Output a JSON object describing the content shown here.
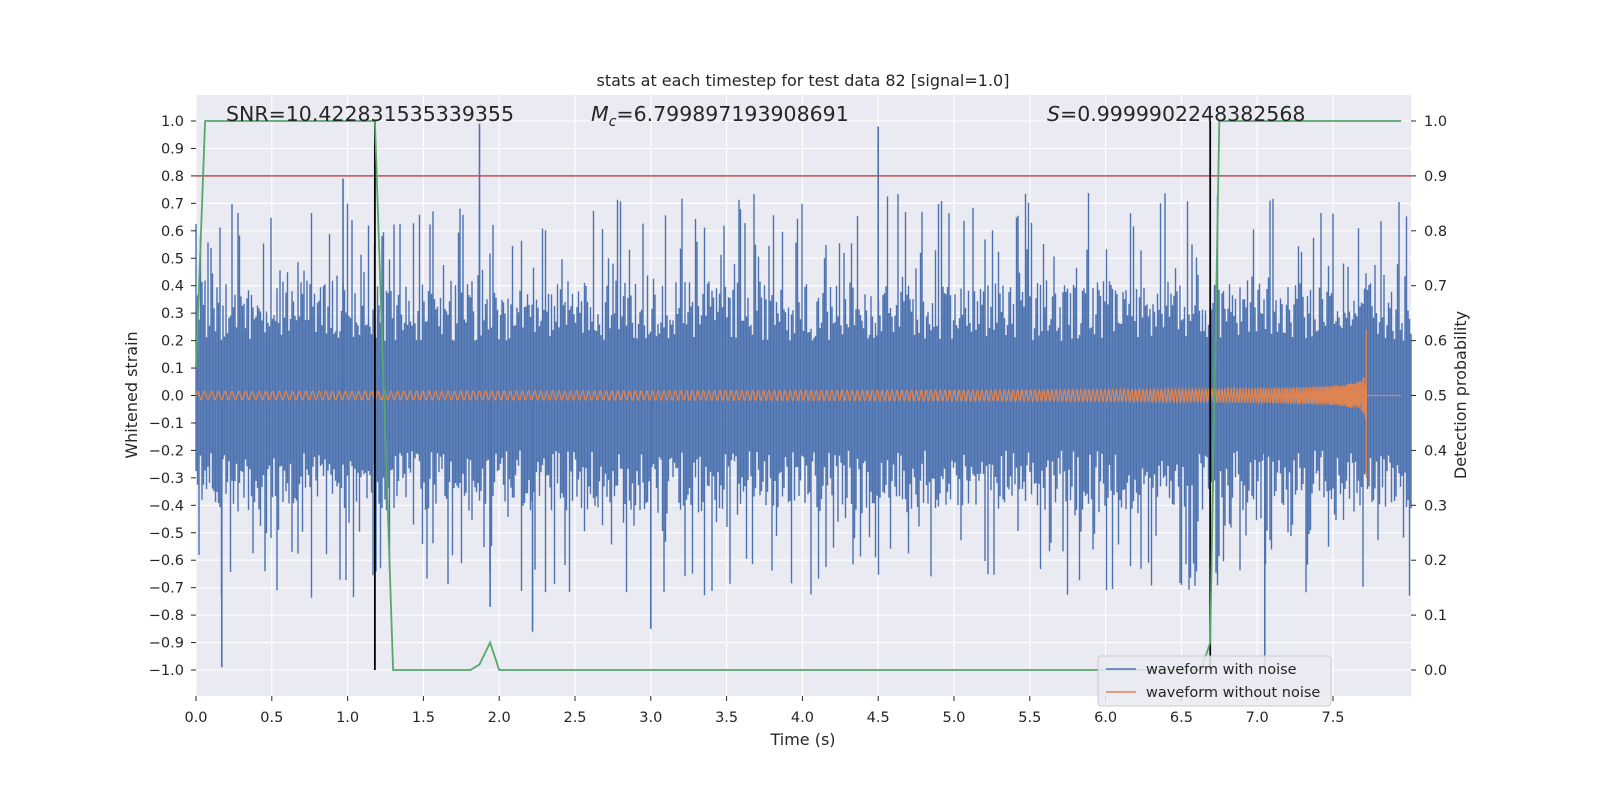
{
  "chart_data": {
    "type": "line",
    "title": "stats at each timestep for test data 82 [signal=1.0]",
    "xlabel": "Time (s)",
    "ylabel": "Whitened strain",
    "y2label": "Detection probability",
    "xlim": [
      0.0,
      8.0
    ],
    "ylim": [
      -1.1,
      1.1
    ],
    "y2lim": [
      -0.05,
      1.05
    ],
    "x_ticks": [
      "0.0",
      "0.5",
      "1.0",
      "1.5",
      "2.0",
      "2.5",
      "3.0",
      "3.5",
      "4.0",
      "4.5",
      "5.0",
      "5.5",
      "6.0",
      "6.5",
      "7.0",
      "7.5"
    ],
    "y_ticks": [
      "−1.0",
      "−0.9",
      "−0.8",
      "−0.7",
      "−0.6",
      "−0.5",
      "−0.4",
      "−0.3",
      "−0.2",
      "−0.1",
      "0.0",
      "0.1",
      "0.2",
      "0.3",
      "0.4",
      "0.5",
      "0.6",
      "0.7",
      "0.8",
      "0.9",
      "1.0"
    ],
    "y2_ticks": [
      "0.0",
      "0.1",
      "0.2",
      "0.3",
      "0.4",
      "0.5",
      "0.6",
      "0.7",
      "0.8",
      "0.9",
      "1.0"
    ],
    "grid": true,
    "legend_position": "lower-right",
    "annotations": {
      "snr": "SNR=10.422831535339355",
      "mc_symbol": "M",
      "mc_sub": "c",
      "mc_value": "=6.799897193908691",
      "s_symbol": "S",
      "s_value": "=0.9999902248382568"
    },
    "series": [
      {
        "name": "waveform with noise",
        "axis": "left",
        "color": "#4c72b0",
        "style": "noise envelope",
        "sample_peaks": [
          {
            "x": 0.17,
            "y": -0.99
          },
          {
            "x": 0.97,
            "y": 0.79
          },
          {
            "x": 1.87,
            "y": 0.99
          },
          {
            "x": 1.94,
            "y": -0.77
          },
          {
            "x": 2.22,
            "y": -0.86
          },
          {
            "x": 3.0,
            "y": -0.85
          },
          {
            "x": 4.5,
            "y": 0.98
          },
          {
            "x": 7.05,
            "y": -0.99
          }
        ]
      },
      {
        "name": "waveform without noise",
        "axis": "left",
        "color": "#dd8452",
        "style": "chirp",
        "x_start": 0.0,
        "x_merger": 7.72,
        "amp_start": 0.015,
        "amp_peak_pos": 0.24,
        "amp_peak_neg": -0.3
      },
      {
        "name": "detection probability",
        "axis": "right",
        "color": "#55a868",
        "x": [
          0.0,
          0.06,
          0.12,
          1.18,
          1.3,
          1.81,
          1.87,
          1.94,
          2.0,
          2.06,
          6.63,
          6.69,
          6.75,
          7.95
        ],
        "y": [
          0.55,
          1.0,
          1.0,
          1.0,
          0.0,
          0.0,
          0.01,
          0.05,
          0.0,
          0.0,
          0.0,
          0.05,
          1.0,
          1.0
        ]
      }
    ],
    "threshold": {
      "axis": "right",
      "value": 0.9,
      "color": "#c44e52"
    },
    "vertical_markers": {
      "x": [
        1.18,
        6.69
      ],
      "ymin": -1.0,
      "ymax": 1.0,
      "color": "#000000"
    }
  }
}
